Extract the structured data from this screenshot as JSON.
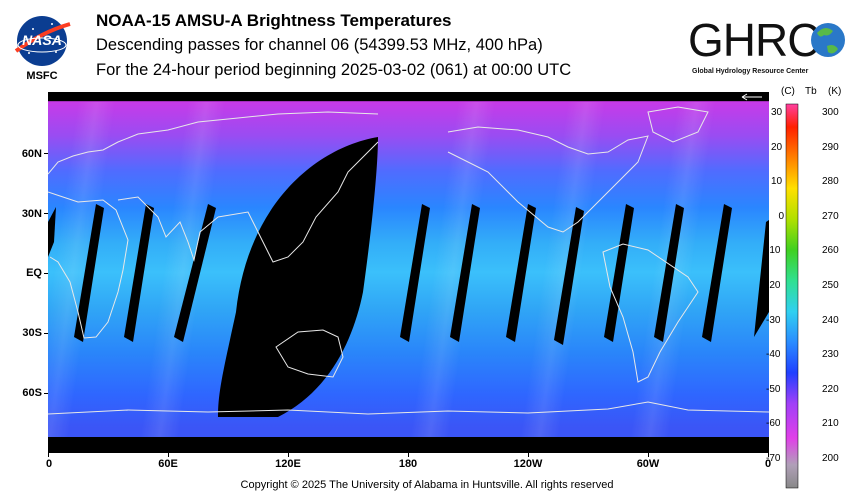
{
  "header": {
    "title": "NOAA-15 AMSU-A Brightness Temperatures",
    "subtitle": "Descending passes for channel 06 (54399.53 MHz, 400 hPa)",
    "period": "For the 24-hour period beginning 2025-03-02 (061) at 00:00 UTC"
  },
  "logos": {
    "nasa_text": "NASA",
    "nasa_center": "MSFC",
    "ghrc_text": "GHRC",
    "ghrc_caption": "Global Hydrology Resource Center"
  },
  "map": {
    "lat_labels": [
      "60N",
      "30N",
      "EQ",
      "30S",
      "60S"
    ],
    "lon_labels": [
      "0",
      "60E",
      "120E",
      "180",
      "120W",
      "60W",
      "0"
    ],
    "projection": "equirectangular",
    "colors": {
      "cold": "#d020e0",
      "cool": "#1f7cff",
      "mild": "#39c8ff",
      "gap": "#000000",
      "coast": "#e8e8e8"
    }
  },
  "colorbar": {
    "header_c": "(C)",
    "header_tb": "Tb",
    "header_k": "(K)",
    "celsius_labels": [
      "30",
      "20",
      "10",
      "0",
      "-10",
      "-20",
      "-30",
      "-40",
      "-50",
      "-60",
      "-70"
    ],
    "kelvin_labels": [
      "300",
      "290",
      "280",
      "270",
      "260",
      "250",
      "240",
      "230",
      "220",
      "210",
      "200"
    ],
    "range_k": [
      195,
      305
    ]
  },
  "footer": "Copyright © 2025 The University of Alabama in Huntsville.  All rights reserved"
}
